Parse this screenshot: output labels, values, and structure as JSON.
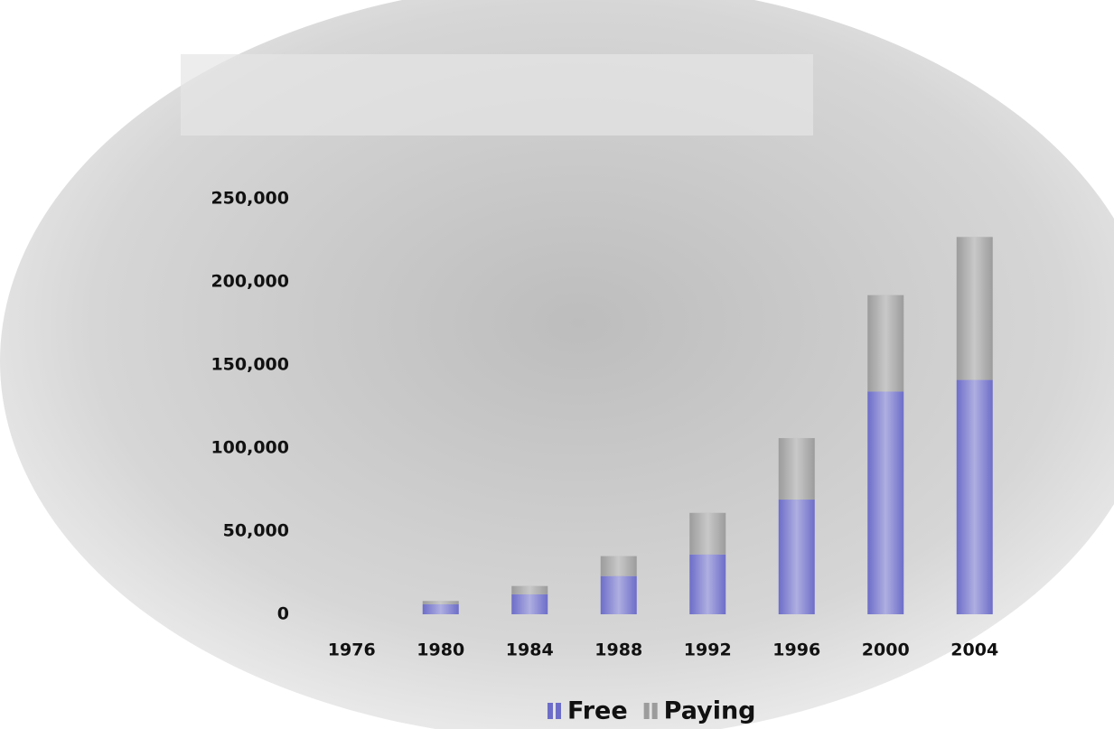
{
  "chart_data": {
    "type": "stacked_bar",
    "categories": [
      "1976",
      "1980",
      "1984",
      "1988",
      "1992",
      "1996",
      "2000",
      "2004"
    ],
    "series": [
      {
        "name": "Free",
        "color": "#6d6dc9",
        "values": [
          0,
          6000,
          12000,
          23000,
          36000,
          69000,
          134000,
          141000
        ]
      },
      {
        "name": "Paying",
        "color": "#9c9c9c",
        "values": [
          0,
          2000,
          5000,
          12000,
          25000,
          37000,
          58000,
          86000
        ]
      }
    ],
    "ylim": [
      0,
      250000
    ],
    "yticks": [
      0,
      {
        "value": 50000,
        "label": "50,000"
      },
      {
        "value": 100000,
        "label": "100,000"
      },
      {
        "value": 150000,
        "label": "150,000"
      },
      {
        "value": 200000,
        "label": "200,000"
      },
      {
        "value": 250000,
        "label": "250,000"
      }
    ],
    "grid": false,
    "legend": "bottom"
  }
}
